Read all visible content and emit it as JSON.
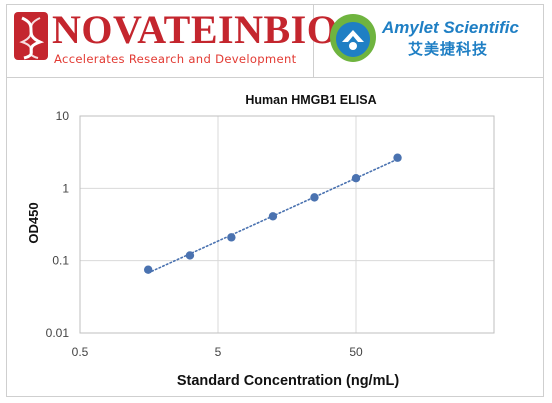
{
  "header": {
    "left_brand": {
      "name": "NOVATEINBIO",
      "tagline": "Accelerates  Research and Development"
    },
    "right_brand": {
      "name": "Amylet Scientific",
      "chinese_name": "艾美捷科技"
    }
  },
  "colors": {
    "novateinbio_red": "#c4262e",
    "amylet_blue": "#1f7fc4",
    "amylet_green": "#6fb43f",
    "series_blue": "#4a72b0"
  },
  "chart_data": {
    "type": "scatter",
    "title": "Human HMGB1 ELISA",
    "xlabel": "Standard Concentration (ng/mL)",
    "ylabel": "OD450",
    "x_scale": "log",
    "y_scale": "log",
    "xlim": [
      0.5,
      500
    ],
    "ylim": [
      0.01,
      10
    ],
    "x_ticks": [
      0.5,
      5,
      50
    ],
    "x_tick_labels": [
      "0.5",
      "5",
      "50"
    ],
    "y_ticks": [
      0.01,
      0.1,
      1,
      10
    ],
    "y_tick_labels": [
      "0.01",
      "0.1",
      "1",
      "10"
    ],
    "grid": true,
    "legend": "none",
    "trendline": "dotted",
    "series": [
      {
        "x": [
          1.56,
          3.13,
          6.25,
          12.5,
          25,
          50,
          100
        ],
        "y": [
          0.075,
          0.118,
          0.21,
          0.41,
          0.75,
          1.38,
          2.65
        ]
      }
    ]
  }
}
